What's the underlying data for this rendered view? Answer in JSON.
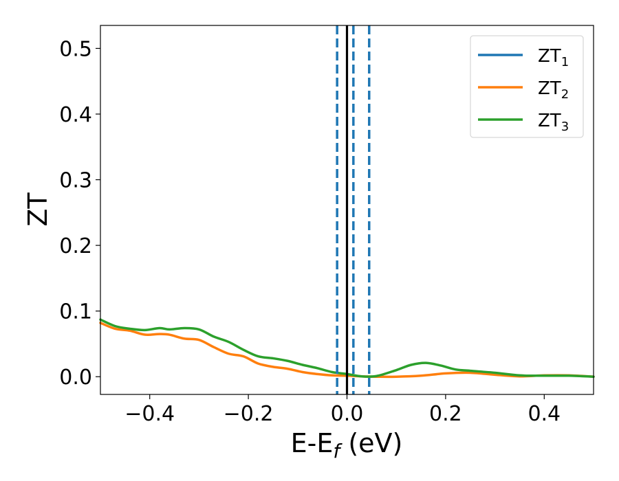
{
  "chart_data": {
    "type": "line",
    "title": "",
    "xlabel": "E-E",
    "xlabel_sub": "f",
    "xlabel_unit": " (eV)",
    "ylabel": "ZT",
    "xlim": [
      -0.5,
      0.5
    ],
    "ylim": [
      -0.027,
      0.535
    ],
    "xticks": [
      -0.4,
      -0.2,
      0.0,
      0.2,
      0.4
    ],
    "xtick_labels": [
      "−0.4",
      "−0.2",
      "0.0",
      "0.2",
      "0.4"
    ],
    "yticks": [
      0.0,
      0.1,
      0.2,
      0.3,
      0.4,
      0.5
    ],
    "ytick_labels": [
      "0.0",
      "0.1",
      "0.2",
      "0.3",
      "0.4",
      "0.5"
    ],
    "grid": false,
    "legend_position": "top-right",
    "reference_lines": [
      {
        "x": 0.0,
        "style": "solid",
        "color": "#000000"
      },
      {
        "x": -0.02,
        "style": "dashed",
        "color": "#1f77b4"
      },
      {
        "x": 0.013,
        "style": "dashed",
        "color": "#1f77b4"
      },
      {
        "x": 0.045,
        "style": "dashed",
        "color": "#1f77b4"
      }
    ],
    "series": [
      {
        "name": "ZT",
        "name_sub": "1",
        "color": "#1f77b4",
        "x": [],
        "y": []
      },
      {
        "name": "ZT",
        "name_sub": "2",
        "color": "#ff7f0e",
        "x": [
          -0.5,
          -0.47,
          -0.44,
          -0.41,
          -0.38,
          -0.36,
          -0.33,
          -0.3,
          -0.27,
          -0.24,
          -0.21,
          -0.18,
          -0.15,
          -0.12,
          -0.09,
          -0.06,
          -0.03,
          0.0,
          0.03,
          0.06,
          0.1,
          0.15,
          0.2,
          0.25,
          0.3,
          0.35,
          0.4,
          0.45,
          0.5
        ],
        "y": [
          0.082,
          0.073,
          0.07,
          0.064,
          0.065,
          0.064,
          0.058,
          0.056,
          0.045,
          0.035,
          0.031,
          0.02,
          0.015,
          0.012,
          0.007,
          0.004,
          0.002,
          0.0015,
          0.0005,
          0.0,
          0.0,
          0.0015,
          0.005,
          0.006,
          0.003,
          0.0005,
          0.002,
          0.002,
          0.0
        ]
      },
      {
        "name": "ZT",
        "name_sub": "3",
        "color": "#2ca02c",
        "x": [
          -0.5,
          -0.47,
          -0.44,
          -0.41,
          -0.38,
          -0.36,
          -0.33,
          -0.3,
          -0.27,
          -0.24,
          -0.21,
          -0.18,
          -0.15,
          -0.12,
          -0.09,
          -0.06,
          -0.03,
          0.0,
          0.03,
          0.06,
          0.1,
          0.13,
          0.16,
          0.19,
          0.22,
          0.25,
          0.3,
          0.35,
          0.4,
          0.45,
          0.5
        ],
        "y": [
          0.087,
          0.077,
          0.073,
          0.071,
          0.074,
          0.072,
          0.074,
          0.072,
          0.061,
          0.053,
          0.041,
          0.031,
          0.028,
          0.024,
          0.018,
          0.013,
          0.007,
          0.004,
          0.0005,
          0.001,
          0.01,
          0.018,
          0.021,
          0.017,
          0.011,
          0.009,
          0.006,
          0.002,
          0.0015,
          0.0015,
          0.0
        ]
      }
    ]
  }
}
